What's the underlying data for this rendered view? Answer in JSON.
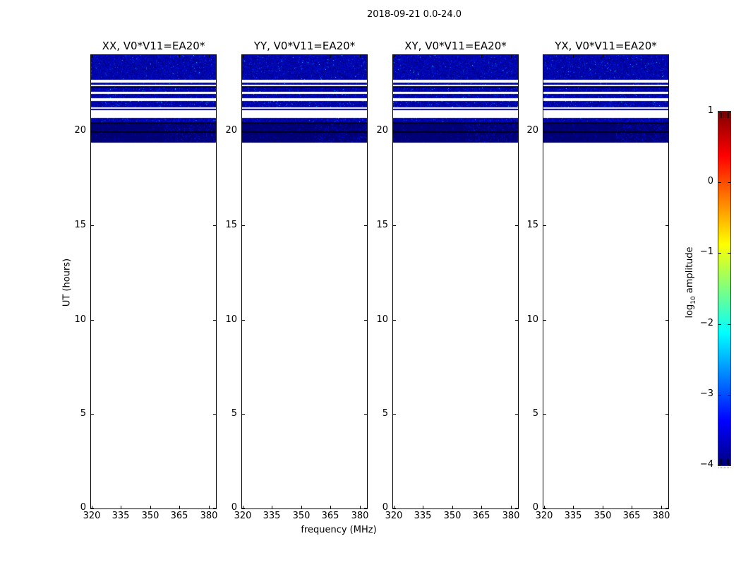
{
  "title": "2018-09-21 0.0-24.0",
  "xlabel": "frequency (MHz)",
  "ylabel": "UT (hours)",
  "colorbar": {
    "prefix": "log",
    "sub": "10",
    "suffix": " amplitude",
    "tick_labels": [
      "1",
      "0",
      "−1",
      "−2",
      "−3",
      "−4"
    ],
    "tick_values": [
      1,
      0,
      -1,
      -2,
      -3,
      -4
    ],
    "colormap": "jet",
    "clim": [
      -4,
      1
    ]
  },
  "colors": {
    "frame": "#000000",
    "background": "#ffffff",
    "data_base_blue": "#0000a0",
    "colorbar_top": "#800000",
    "colorbar_bottom": "#000080"
  },
  "chart_data": {
    "type": "heatmap",
    "title": "2018-09-21 0.0-24.0",
    "xlabel": "frequency (MHz)",
    "ylabel": "UT (hours)",
    "panels": [
      {
        "title": "XX, V0*V11=EA20*"
      },
      {
        "title": "YY, V0*V11=EA20*"
      },
      {
        "title": "XY, V0*V11=EA20*"
      },
      {
        "title": "YX, V0*V11=EA20*"
      }
    ],
    "xlim": [
      320,
      384
    ],
    "ylim": [
      0,
      24
    ],
    "x_ticks": [
      320,
      335,
      350,
      365,
      380
    ],
    "y_ticks": [
      0,
      5,
      10,
      15,
      20
    ],
    "colormap": "jet",
    "clim": [
      -4,
      1
    ],
    "colorbar_label": "log10 amplitude",
    "colorbar_ticks": [
      1,
      0,
      -1,
      -2,
      -3,
      -4
    ],
    "grid": false,
    "note": "Data present only between UT 19.4 and 24.0; rest of the time range is blank. Bands listed top-down.",
    "bands": [
      {
        "ut_top": 24.0,
        "ut_bot": 22.69,
        "kind": "noise",
        "log_amp": -3.4
      },
      {
        "ut_top": 22.69,
        "ut_bot": 22.54,
        "kind": "gap",
        "log_amp": null
      },
      {
        "ut_top": 22.54,
        "ut_bot": 22.43,
        "kind": "noise",
        "log_amp": -3.4
      },
      {
        "ut_top": 22.43,
        "ut_bot": 22.36,
        "kind": "gap",
        "log_amp": null
      },
      {
        "ut_top": 22.36,
        "ut_bot": 22.28,
        "kind": "dark_line",
        "log_amp": -4.0
      },
      {
        "ut_top": 22.28,
        "ut_bot": 22.06,
        "kind": "noise",
        "log_amp": -3.4
      },
      {
        "ut_top": 22.06,
        "ut_bot": 21.94,
        "kind": "gap",
        "log_amp": null
      },
      {
        "ut_top": 21.94,
        "ut_bot": 21.72,
        "kind": "noise",
        "log_amp": -3.4
      },
      {
        "ut_top": 21.72,
        "ut_bot": 21.57,
        "kind": "gap",
        "log_amp": null
      },
      {
        "ut_top": 21.57,
        "ut_bot": 21.23,
        "kind": "noise_bright",
        "log_amp": -3.2
      },
      {
        "ut_top": 21.23,
        "ut_bot": 21.16,
        "kind": "gap",
        "log_amp": null
      },
      {
        "ut_top": 21.16,
        "ut_bot": 21.08,
        "kind": "dark",
        "log_amp": -3.8
      },
      {
        "ut_top": 21.08,
        "ut_bot": 20.67,
        "kind": "gap",
        "log_amp": null
      },
      {
        "ut_top": 20.67,
        "ut_bot": 20.45,
        "kind": "noise",
        "log_amp": -3.5,
        "bright_right": true
      },
      {
        "ut_top": 20.45,
        "ut_bot": 20.37,
        "kind": "dark_line",
        "log_amp": -4.0
      },
      {
        "ut_top": 20.37,
        "ut_bot": 19.98,
        "kind": "dark",
        "log_amp": -3.7,
        "bright_right": true
      },
      {
        "ut_top": 19.98,
        "ut_bot": 19.9,
        "kind": "dark_line",
        "log_amp": -4.0
      },
      {
        "ut_top": 19.9,
        "ut_bot": 19.38,
        "kind": "dark",
        "log_amp": -3.7,
        "bright_right": true
      }
    ]
  }
}
